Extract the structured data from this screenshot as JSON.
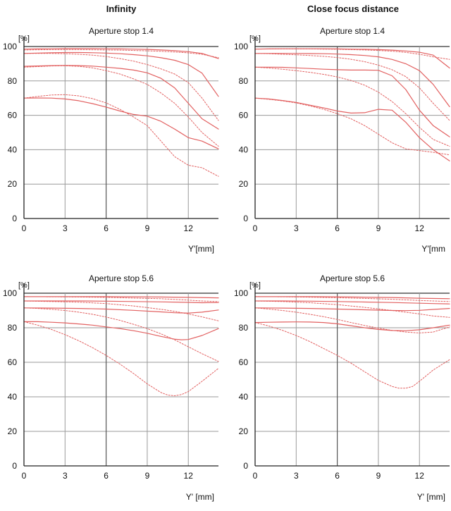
{
  "column_titles": [
    "Infinity",
    "Close focus distance"
  ],
  "chart_data": [
    {
      "type": "line",
      "title": "Aperture stop 1.4",
      "xlabel": "Y'[mm]",
      "ylabel": "[%]",
      "xlim": [
        0,
        14.2
      ],
      "ylim": [
        0,
        100
      ],
      "xticks": [
        0,
        3,
        6,
        9,
        12
      ],
      "yticks": [
        0,
        20,
        40,
        60,
        80,
        100
      ],
      "grid": true,
      "series_color": "#e26060",
      "series": [
        {
          "style": "solid",
          "x": [
            0,
            1,
            2,
            3,
            4,
            5,
            6,
            7,
            8,
            9,
            10,
            11,
            12,
            13,
            14.2
          ],
          "y": [
            98.5,
            98.6,
            98.7,
            98.8,
            98.8,
            98.8,
            98.7,
            98.6,
            98.5,
            98.3,
            98,
            97.6,
            97,
            96,
            93
          ]
        },
        {
          "style": "solid",
          "x": [
            0,
            1,
            2,
            3,
            4,
            5,
            6,
            7,
            8,
            9,
            10,
            11,
            12,
            13,
            14.2
          ],
          "y": [
            96,
            96.2,
            96.4,
            96.5,
            96.5,
            96.4,
            96.2,
            95.8,
            95.3,
            94.6,
            93.5,
            92,
            89.5,
            84.5,
            71
          ]
        },
        {
          "style": "solid",
          "x": [
            0,
            1,
            2,
            3,
            4,
            5,
            6,
            7,
            8,
            9,
            10,
            11,
            12,
            13,
            14.2
          ],
          "y": [
            88.5,
            88.7,
            88.9,
            89,
            88.9,
            88.6,
            88,
            87.3,
            86.3,
            84.7,
            81.5,
            76,
            67,
            58,
            52
          ]
        },
        {
          "style": "solid",
          "x": [
            0,
            1,
            2,
            3,
            4,
            5,
            6,
            7,
            8,
            9,
            10,
            11,
            12,
            13,
            14.2
          ],
          "y": [
            70,
            70.1,
            70,
            69.5,
            68.5,
            66.8,
            64.8,
            62.5,
            60.5,
            59.5,
            56.5,
            52,
            47,
            45,
            40.5
          ]
        },
        {
          "style": "dotted",
          "x": [
            0,
            1,
            2,
            3,
            4,
            5,
            6,
            7,
            8,
            9,
            10,
            11,
            12,
            13,
            14.2
          ],
          "y": [
            98,
            98.1,
            98.2,
            98.2,
            98.2,
            98.1,
            98,
            97.9,
            97.7,
            97.5,
            97.2,
            96.8,
            96.3,
            95.5,
            93.5
          ]
        },
        {
          "style": "dotted",
          "x": [
            0,
            1,
            2,
            3,
            4,
            5,
            6,
            7,
            8,
            9,
            10,
            11,
            12,
            13,
            14.2
          ],
          "y": [
            96,
            96,
            96,
            95.8,
            95.5,
            95,
            94.2,
            93,
            91.5,
            89.5,
            87,
            84,
            79,
            70,
            57
          ]
        },
        {
          "style": "dotted",
          "x": [
            0,
            1,
            2,
            3,
            4,
            5,
            6,
            7,
            8,
            9,
            10,
            11,
            12,
            13,
            14.2
          ],
          "y": [
            88,
            88.3,
            88.7,
            88.8,
            88.5,
            87.6,
            86,
            84,
            81.2,
            78,
            73,
            67,
            59,
            50,
            42
          ]
        },
        {
          "style": "dotted",
          "x": [
            0,
            1,
            2,
            3,
            4,
            5,
            6,
            7,
            8,
            9,
            10,
            11,
            12,
            13,
            14.2
          ],
          "y": [
            70,
            71,
            71.8,
            72,
            71.3,
            69.7,
            67.2,
            63.5,
            59,
            54,
            45,
            36,
            31,
            29.5,
            24.5
          ]
        }
      ]
    },
    {
      "type": "line",
      "title": "Aperture stop 1.4",
      "xlabel": "Y'[mm",
      "ylabel": "[%]",
      "xlim": [
        0,
        14.2
      ],
      "ylim": [
        0,
        100
      ],
      "xticks": [
        0,
        3,
        6,
        9,
        12
      ],
      "yticks": [
        0,
        20,
        40,
        60,
        80,
        100
      ],
      "grid": true,
      "series_color": "#e26060",
      "series": [
        {
          "style": "solid",
          "x": [
            0,
            1,
            2,
            3,
            4,
            5,
            6,
            7,
            8,
            9,
            10,
            11,
            12,
            13,
            14.2
          ],
          "y": [
            98.5,
            98.6,
            98.7,
            98.7,
            98.7,
            98.7,
            98.6,
            98.5,
            98.4,
            98.2,
            97.9,
            97.4,
            96.7,
            95,
            87.5
          ]
        },
        {
          "style": "solid",
          "x": [
            0,
            1,
            2,
            3,
            4,
            5,
            6,
            7,
            8,
            9,
            10,
            11,
            12,
            13,
            14.2
          ],
          "y": [
            96,
            96,
            96,
            96,
            95.9,
            95.8,
            95.6,
            95.3,
            94.8,
            94,
            92.5,
            90,
            86,
            78,
            65
          ]
        },
        {
          "style": "solid",
          "x": [
            0,
            1,
            2,
            3,
            4,
            5,
            6,
            7,
            8,
            9,
            10,
            11,
            12,
            13,
            14.2
          ],
          "y": [
            88,
            88,
            87.9,
            87.6,
            87.2,
            86.8,
            86.5,
            86.3,
            86.3,
            86.2,
            83,
            75,
            63,
            54,
            47.5
          ]
        },
        {
          "style": "solid",
          "x": [
            0,
            1,
            2,
            3,
            4,
            5,
            6,
            7,
            8,
            9,
            10,
            11,
            12,
            13,
            14.2
          ],
          "y": [
            70,
            69.5,
            68.6,
            67.5,
            65.9,
            64.3,
            62.5,
            61.3,
            61.5,
            63.5,
            63,
            56,
            47,
            40,
            33.5
          ]
        },
        {
          "style": "dotted",
          "x": [
            0,
            1,
            2,
            3,
            4,
            5,
            6,
            7,
            8,
            9,
            10,
            11,
            12,
            13,
            14.2
          ],
          "y": [
            98.5,
            98.6,
            98.6,
            98.6,
            98.6,
            98.5,
            98.4,
            98.2,
            98,
            97.7,
            97.3,
            96.6,
            95.5,
            94,
            92.5
          ]
        },
        {
          "style": "dotted",
          "x": [
            0,
            1,
            2,
            3,
            4,
            5,
            6,
            7,
            8,
            9,
            10,
            11,
            12,
            13,
            14.2
          ],
          "y": [
            96,
            95.8,
            95.5,
            95.2,
            94.8,
            94.3,
            93.6,
            92.6,
            91.2,
            89.2,
            86.5,
            82.5,
            76,
            67,
            57
          ]
        },
        {
          "style": "dotted",
          "x": [
            0,
            1,
            2,
            3,
            4,
            5,
            6,
            7,
            8,
            9,
            10,
            11,
            12,
            13,
            14.2
          ],
          "y": [
            88,
            87.5,
            86.8,
            86,
            85,
            83.8,
            82.3,
            80.3,
            77.5,
            73.5,
            68,
            61,
            53,
            46,
            42
          ]
        },
        {
          "style": "dotted",
          "x": [
            0,
            1,
            2,
            3,
            4,
            5,
            6,
            7,
            8,
            9,
            10,
            11,
            12,
            13,
            14.2
          ],
          "y": [
            70,
            69.3,
            68.4,
            67.2,
            65.5,
            63.5,
            61,
            58,
            54,
            49,
            44,
            40.5,
            39.5,
            38.5,
            37
          ]
        }
      ]
    },
    {
      "type": "line",
      "title": "Aperture stop 5.6",
      "xlabel": "Y' [mm]",
      "ylabel": "[%]",
      "xlim": [
        0,
        14.2
      ],
      "ylim": [
        0,
        100
      ],
      "xticks": [
        0,
        3,
        6,
        9,
        12
      ],
      "yticks": [
        0,
        20,
        40,
        60,
        80,
        100
      ],
      "grid": true,
      "series_color": "#e26060",
      "series": [
        {
          "style": "solid",
          "x": [
            0,
            2,
            4,
            6,
            8,
            10,
            12,
            14.2
          ],
          "y": [
            98,
            98,
            98,
            98,
            97.9,
            97.8,
            97.6,
            97.3
          ]
        },
        {
          "style": "solid",
          "x": [
            0,
            2,
            4,
            6,
            8,
            10,
            12,
            13,
            14.2
          ],
          "y": [
            95.5,
            95.5,
            95.5,
            95.4,
            95.2,
            95,
            94.7,
            94.5,
            94.6
          ]
        },
        {
          "style": "solid",
          "x": [
            0,
            2,
            4,
            6,
            8,
            10,
            11,
            12,
            13,
            14.2
          ],
          "y": [
            91.5,
            91.4,
            91.2,
            90.8,
            90.1,
            89.2,
            88.7,
            88.5,
            89,
            90.3
          ]
        },
        {
          "style": "solid",
          "x": [
            0,
            1,
            2,
            3,
            4,
            5,
            6,
            7,
            8,
            9,
            10,
            11,
            11.5,
            12,
            13,
            14.2
          ],
          "y": [
            83.5,
            83.5,
            83.2,
            82.8,
            82.2,
            81.5,
            80.5,
            79.5,
            78.3,
            76.8,
            75,
            73.4,
            73,
            73.2,
            75.5,
            79.5
          ]
        },
        {
          "style": "dotted",
          "x": [
            0,
            2,
            4,
            6,
            8,
            10,
            12,
            13,
            14.2
          ],
          "y": [
            98,
            97.9,
            97.8,
            97.6,
            97.2,
            96.8,
            96,
            95.5,
            95.1
          ]
        },
        {
          "style": "dotted",
          "x": [
            0,
            2,
            4,
            6,
            8,
            10,
            11,
            12,
            13,
            14.2
          ],
          "y": [
            95.5,
            95.2,
            94.8,
            94,
            92.6,
            90.7,
            89.5,
            88,
            86.3,
            84
          ]
        },
        {
          "style": "dotted",
          "x": [
            0,
            1,
            2,
            3,
            4,
            5,
            6,
            7,
            8,
            9,
            10,
            11,
            12,
            13,
            14.2
          ],
          "y": [
            91.5,
            91.2,
            90.7,
            90,
            89,
            87.8,
            86.2,
            84.3,
            82,
            79.5,
            76.5,
            73,
            69,
            65,
            60.5
          ]
        },
        {
          "style": "dotted",
          "x": [
            0,
            1,
            2,
            3,
            4,
            5,
            6,
            7,
            8,
            9,
            10,
            10.5,
            11,
            11.5,
            12,
            13,
            14.2
          ],
          "y": [
            83.5,
            81.5,
            79,
            76,
            72.5,
            68.5,
            64,
            59,
            53.5,
            47.5,
            42.5,
            41,
            40.6,
            41.3,
            43,
            49,
            56.5
          ]
        }
      ]
    },
    {
      "type": "line",
      "title": "Aperture stop 5.6",
      "xlabel": "Y' [mm]",
      "ylabel": "[%]",
      "xlim": [
        0,
        14.2
      ],
      "ylim": [
        0,
        100
      ],
      "xticks": [
        0,
        3,
        6,
        9,
        12
      ],
      "yticks": [
        0,
        20,
        40,
        60,
        80,
        100
      ],
      "grid": true,
      "series_color": "#e26060",
      "series": [
        {
          "style": "solid",
          "x": [
            0,
            2,
            4,
            6,
            8,
            10,
            12,
            14.2
          ],
          "y": [
            98,
            98,
            98,
            97.9,
            97.7,
            97.5,
            97.1,
            96.8
          ]
        },
        {
          "style": "solid",
          "x": [
            0,
            2,
            4,
            6,
            8,
            10,
            12,
            13,
            14.2
          ],
          "y": [
            95.5,
            95.5,
            95.4,
            95.2,
            94.9,
            94.6,
            94.2,
            94,
            93.8
          ]
        },
        {
          "style": "solid",
          "x": [
            0,
            2,
            4,
            6,
            8,
            10,
            11,
            12,
            13,
            14.2
          ],
          "y": [
            91.5,
            91.4,
            91.2,
            90.8,
            90.4,
            90,
            89.9,
            90.1,
            90.6,
            91.2
          ]
        },
        {
          "style": "solid",
          "x": [
            0,
            1,
            2,
            3,
            4,
            5,
            6,
            7,
            8,
            9,
            10,
            11,
            12,
            13,
            14.2
          ],
          "y": [
            83,
            83.2,
            83.3,
            83.4,
            83.3,
            83,
            82.3,
            81.2,
            80,
            79,
            78.4,
            78.3,
            78.8,
            80,
            81.5
          ]
        },
        {
          "style": "dotted",
          "x": [
            0,
            2,
            4,
            6,
            8,
            10,
            12,
            13,
            14.2
          ],
          "y": [
            98,
            97.9,
            97.7,
            97.4,
            97,
            96.5,
            95.8,
            95.5,
            95.2
          ]
        },
        {
          "style": "dotted",
          "x": [
            0,
            2,
            4,
            6,
            8,
            10,
            12,
            13,
            14.2
          ],
          "y": [
            95.5,
            95.2,
            94.5,
            93.4,
            91.8,
            90,
            88,
            86.8,
            86
          ]
        },
        {
          "style": "dotted",
          "x": [
            0,
            1,
            2,
            3,
            4,
            5,
            6,
            7,
            8,
            9,
            10,
            11,
            12,
            13,
            14.2
          ],
          "y": [
            91.5,
            90.8,
            90,
            89,
            87.8,
            86.4,
            84.8,
            83,
            81.3,
            79.8,
            78.5,
            77.5,
            77,
            77.5,
            80.5
          ]
        },
        {
          "style": "dotted",
          "x": [
            0,
            1,
            2,
            3,
            4,
            5,
            6,
            7,
            8,
            9,
            10,
            10.5,
            11,
            11.5,
            12,
            13,
            14.2
          ],
          "y": [
            83,
            81,
            78.5,
            75.5,
            72,
            68,
            64,
            59.5,
            54.5,
            49.5,
            46,
            45,
            45,
            46,
            49,
            55.5,
            61.5
          ]
        }
      ]
    }
  ]
}
